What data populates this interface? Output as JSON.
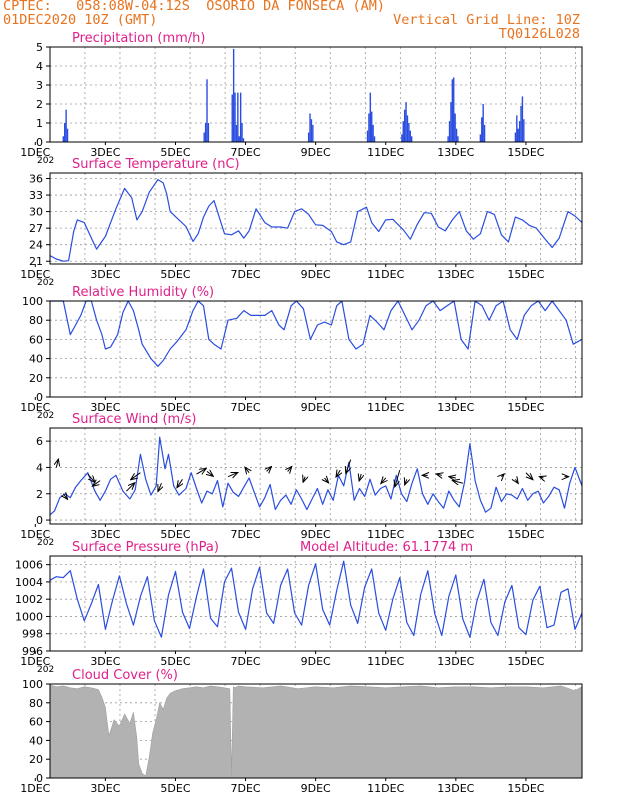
{
  "header": {
    "line1_left": "CPTEC:   058:08W-04:12S  OSORIO DA FONSECA (AM)",
    "line2_left": "01DEC2020 10Z (GMT)",
    "line2_right": "Vertical Grid Line: 10Z",
    "line3_right": "TQ0126L028"
  },
  "colors": {
    "header": "#e8731f",
    "title": "#e0208a",
    "series": "#2a4de0",
    "bars": "#2a4de0",
    "cloud": "#b2b2b2",
    "grid": "#9a9a9a"
  },
  "chart_data": [
    {
      "type": "bar",
      "title": "Precipitation (mm/h)",
      "x_tick_labels": [
        "1DEC",
        "3DEC",
        "5DEC",
        "7DEC",
        "9DEC",
        "11DEC",
        "13DEC",
        "15DEC"
      ],
      "x_cutoff_label": "202",
      "xlim_days": [
        1.42,
        16.6
      ],
      "ylim": [
        0,
        5
      ],
      "y_ticks": [
        0,
        1,
        2,
        3,
        4,
        5
      ],
      "x": [
        1.8,
        1.84,
        1.88,
        1.92,
        5.82,
        5.86,
        5.9,
        5.94,
        6.62,
        6.66,
        6.7,
        6.74,
        6.78,
        6.82,
        6.86,
        6.9,
        6.94,
        8.8,
        8.84,
        8.88,
        8.92,
        10.48,
        10.52,
        10.56,
        10.6,
        10.64,
        10.68,
        11.46,
        11.5,
        11.54,
        11.58,
        11.62,
        11.66,
        11.7,
        11.74,
        12.78,
        12.82,
        12.86,
        12.9,
        12.94,
        12.98,
        13.02,
        13.06,
        13.7,
        13.74,
        13.78,
        13.82,
        14.7,
        14.74,
        14.78,
        14.82,
        14.86,
        14.9,
        14.94
      ],
      "values": [
        0.3,
        1.0,
        1.7,
        0.7,
        0.5,
        1.0,
        3.3,
        1.0,
        2.5,
        4.9,
        2.6,
        0.9,
        2.6,
        0.3,
        2.6,
        1.0,
        0.2,
        0.5,
        1.5,
        1.2,
        0.9,
        0.6,
        1.5,
        2.6,
        1.6,
        0.9,
        0.3,
        0.4,
        1.1,
        1.7,
        2.1,
        1.4,
        1.0,
        0.6,
        0.3,
        0.3,
        1.1,
        2.1,
        3.3,
        3.4,
        1.5,
        0.7,
        0.3,
        0.4,
        1.3,
        2.0,
        0.9,
        0.5,
        1.4,
        0.7,
        1.1,
        1.9,
        2.4,
        1.2
      ]
    },
    {
      "type": "line",
      "title": "Surface Temperature (nC)",
      "x_tick_labels": [
        "1DEC",
        "3DEC",
        "5DEC",
        "7DEC",
        "9DEC",
        "11DEC",
        "13DEC",
        "15DEC"
      ],
      "x_cutoff_label": "202",
      "ylim": [
        20.5,
        37
      ],
      "y_ticks": [
        21,
        24,
        27,
        30,
        33,
        36
      ],
      "x": [
        1.42,
        1.6,
        1.8,
        1.95,
        2.1,
        2.2,
        2.4,
        2.6,
        2.75,
        3.0,
        3.3,
        3.55,
        3.75,
        3.9,
        4.05,
        4.25,
        4.5,
        4.65,
        4.75,
        4.85,
        5.1,
        5.3,
        5.5,
        5.65,
        5.8,
        5.95,
        6.1,
        6.4,
        6.6,
        6.8,
        6.95,
        7.1,
        7.3,
        7.55,
        7.75,
        8.0,
        8.2,
        8.4,
        8.6,
        8.8,
        9.0,
        9.2,
        9.45,
        9.6,
        9.8,
        10.0,
        10.2,
        10.45,
        10.6,
        10.8,
        11.0,
        11.2,
        11.5,
        11.7,
        11.9,
        12.1,
        12.3,
        12.5,
        12.7,
        12.9,
        13.1,
        13.3,
        13.5,
        13.7,
        13.9,
        14.1,
        14.3,
        14.5,
        14.7,
        14.9,
        15.1,
        15.3,
        15.55,
        15.75,
        15.95,
        16.2,
        16.4,
        16.6
      ],
      "values": [
        22.0,
        21.4,
        21.0,
        21.1,
        26.5,
        28.5,
        28.0,
        25.2,
        23.2,
        25.5,
        30.5,
        34.2,
        32.5,
        28.5,
        30.0,
        33.5,
        35.8,
        35.2,
        33.2,
        30.0,
        28.5,
        27.3,
        24.6,
        26.0,
        29.0,
        31.0,
        32.0,
        26.0,
        25.8,
        26.5,
        25.2,
        26.5,
        30.5,
        28.0,
        27.2,
        27.2,
        27.0,
        30.0,
        30.5,
        29.5,
        27.6,
        27.5,
        26.4,
        24.5,
        24.0,
        24.5,
        30.0,
        30.8,
        28.0,
        26.4,
        28.5,
        28.6,
        26.7,
        25.0,
        27.7,
        29.8,
        29.7,
        27.2,
        26.5,
        28.5,
        30.0,
        26.5,
        25.0,
        26.0,
        30.0,
        29.5,
        25.8,
        24.5,
        29.0,
        28.5,
        27.5,
        27.0,
        25.0,
        23.5,
        25.2,
        30.0,
        29.2,
        28.0
      ]
    },
    {
      "type": "line",
      "title": "Relative Humidity (%)",
      "x_tick_labels": [
        "1DEC",
        "3DEC",
        "5DEC",
        "7DEC",
        "9DEC",
        "11DEC",
        "13DEC",
        "15DEC"
      ],
      "x_cutoff_label": "202",
      "ylim": [
        0,
        100
      ],
      "y_ticks": [
        0,
        20,
        40,
        60,
        80,
        100
      ],
      "x": [
        1.42,
        1.6,
        1.8,
        2.0,
        2.15,
        2.3,
        2.45,
        2.6,
        2.75,
        2.9,
        3.0,
        3.15,
        3.35,
        3.5,
        3.65,
        3.8,
        3.95,
        4.05,
        4.3,
        4.5,
        4.65,
        4.85,
        5.05,
        5.3,
        5.5,
        5.65,
        5.8,
        5.95,
        6.1,
        6.3,
        6.5,
        6.75,
        6.95,
        7.15,
        7.35,
        7.55,
        7.75,
        7.95,
        8.1,
        8.3,
        8.45,
        8.65,
        8.85,
        9.05,
        9.25,
        9.45,
        9.6,
        9.75,
        9.95,
        10.15,
        10.35,
        10.55,
        10.75,
        10.95,
        11.15,
        11.35,
        11.55,
        11.75,
        11.95,
        12.15,
        12.35,
        12.55,
        12.75,
        12.95,
        13.15,
        13.35,
        13.55,
        13.75,
        13.95,
        14.15,
        14.35,
        14.55,
        14.75,
        14.95,
        15.15,
        15.35,
        15.55,
        15.75,
        15.95,
        16.15,
        16.35,
        16.6
      ],
      "values": [
        100,
        100,
        100,
        65,
        75,
        85,
        100,
        100,
        80,
        65,
        50,
        52,
        65,
        88,
        100,
        90,
        70,
        55,
        40,
        32,
        38,
        50,
        58,
        70,
        90,
        100,
        95,
        60,
        55,
        50,
        80,
        82,
        90,
        85,
        85,
        85,
        90,
        75,
        70,
        95,
        100,
        92,
        60,
        75,
        78,
        75,
        95,
        100,
        60,
        50,
        55,
        85,
        78,
        70,
        90,
        100,
        85,
        70,
        80,
        95,
        100,
        90,
        95,
        100,
        60,
        50,
        100,
        95,
        80,
        95,
        100,
        70,
        60,
        85,
        95,
        100,
        90,
        100,
        90,
        80,
        55,
        60
      ]
    },
    {
      "type": "line",
      "title": "Surface Wind (m/s)",
      "x_tick_labels": [
        "1DEC",
        "3DEC",
        "5DEC",
        "7DEC",
        "9DEC",
        "11DEC",
        "13DEC",
        "15DEC"
      ],
      "x_cutoff_label": "202",
      "ylim": [
        -0.3,
        7
      ],
      "y_ticks": [
        0,
        2,
        4,
        6
      ],
      "x": [
        1.42,
        1.55,
        1.7,
        1.85,
        2.0,
        2.15,
        2.3,
        2.5,
        2.7,
        2.85,
        3.0,
        3.15,
        3.3,
        3.5,
        3.7,
        3.85,
        4.0,
        4.15,
        4.3,
        4.45,
        4.55,
        4.7,
        4.8,
        4.95,
        5.1,
        5.3,
        5.45,
        5.6,
        5.75,
        5.9,
        6.05,
        6.2,
        6.35,
        6.5,
        6.65,
        6.8,
        6.95,
        7.1,
        7.25,
        7.4,
        7.55,
        7.7,
        7.85,
        8.0,
        8.15,
        8.3,
        8.45,
        8.6,
        8.75,
        8.9,
        9.05,
        9.2,
        9.35,
        9.5,
        9.65,
        9.8,
        9.95,
        10.1,
        10.25,
        10.4,
        10.55,
        10.7,
        10.85,
        11.0,
        11.15,
        11.3,
        11.45,
        11.6,
        11.75,
        11.9,
        12.05,
        12.2,
        12.35,
        12.5,
        12.65,
        12.8,
        12.95,
        13.1,
        13.25,
        13.4,
        13.55,
        13.7,
        13.85,
        14.0,
        14.15,
        14.3,
        14.45,
        14.6,
        14.75,
        14.9,
        15.05,
        15.2,
        15.35,
        15.5,
        15.65,
        15.8,
        15.95,
        16.1,
        16.25,
        16.4,
        16.6
      ],
      "values": [
        0.4,
        0.7,
        1.7,
        2.0,
        1.7,
        2.5,
        3.0,
        3.6,
        2.2,
        1.5,
        2.2,
        3.1,
        3.4,
        2.2,
        1.6,
        2.3,
        5.0,
        3.1,
        1.9,
        2.6,
        6.3,
        3.9,
        5.0,
        2.6,
        1.9,
        2.4,
        3.6,
        2.4,
        1.3,
        2.2,
        2.0,
        3.0,
        1.0,
        2.8,
        2.1,
        1.8,
        2.5,
        3.2,
        2.1,
        1.0,
        1.7,
        2.7,
        0.8,
        1.5,
        1.9,
        1.2,
        2.3,
        1.6,
        0.8,
        1.6,
        2.4,
        1.2,
        2.3,
        1.5,
        3.4,
        2.6,
        4.4,
        1.5,
        2.4,
        1.8,
        3.1,
        1.9,
        2.4,
        2.6,
        1.6,
        3.4,
        2.0,
        1.4,
        2.8,
        3.9,
        2.0,
        1.2,
        2.0,
        1.4,
        0.9,
        2.2,
        1.5,
        1.0,
        2.9,
        5.8,
        3.0,
        1.5,
        0.6,
        0.9,
        2.5,
        1.4,
        2.0,
        1.9,
        1.6,
        2.4,
        1.5,
        2.0,
        2.2,
        1.3,
        1.8,
        2.5,
        2.3,
        0.9,
        2.8,
        4.0,
        2.6
      ],
      "wind_vectors": [
        {
          "x": 1.6,
          "y": 4.0,
          "u": 0.15,
          "v": 0.6
        },
        {
          "x": 1.8,
          "y": 2.0,
          "u": 0.3,
          "v": -0.4
        },
        {
          "x": 2.5,
          "y": 3.5,
          "u": 0.5,
          "v": -0.6
        },
        {
          "x": 2.85,
          "y": 3.0,
          "u": -0.55,
          "v": -0.4
        },
        {
          "x": 3.6,
          "y": 2.2,
          "u": 0.6,
          "v": 0.6
        },
        {
          "x": 4.0,
          "y": 3.6,
          "u": -0.7,
          "v": -0.5
        },
        {
          "x": 4.6,
          "y": 2.8,
          "u": -0.25,
          "v": -0.6
        },
        {
          "x": 5.2,
          "y": 3.1,
          "u": -0.4,
          "v": -0.6
        },
        {
          "x": 5.6,
          "y": 3.5,
          "u": 0.7,
          "v": 0.4
        },
        {
          "x": 5.9,
          "y": 3.7,
          "u": 0.45,
          "v": -0.35
        },
        {
          "x": 6.5,
          "y": 3.3,
          "u": 0.7,
          "v": 0.3
        },
        {
          "x": 7.1,
          "y": 3.6,
          "u": -0.3,
          "v": 0.4
        },
        {
          "x": 7.6,
          "y": 3.7,
          "u": 0.35,
          "v": 0.35
        },
        {
          "x": 8.2,
          "y": 3.7,
          "u": 0.3,
          "v": 0.35
        },
        {
          "x": 8.7,
          "y": 3.3,
          "u": -0.15,
          "v": -0.4
        },
        {
          "x": 9.25,
          "y": 3.2,
          "u": 0.3,
          "v": -0.35
        },
        {
          "x": 9.7,
          "y": 3.8,
          "u": -0.3,
          "v": -0.5
        },
        {
          "x": 10.0,
          "y": 4.6,
          "u": -0.35,
          "v": -1.0
        },
        {
          "x": 10.3,
          "y": 3.5,
          "u": -0.15,
          "v": -0.5
        },
        {
          "x": 11.0,
          "y": 3.2,
          "u": -0.35,
          "v": -0.4
        },
        {
          "x": 11.4,
          "y": 3.8,
          "u": -0.35,
          "v": -1.2
        },
        {
          "x": 11.6,
          "y": 3.1,
          "u": -0.15,
          "v": -0.4
        },
        {
          "x": 12.2,
          "y": 3.4,
          "u": -0.4,
          "v": 0.0
        },
        {
          "x": 12.6,
          "y": 3.4,
          "u": -0.4,
          "v": 0.1
        },
        {
          "x": 13.0,
          "y": 3.2,
          "u": -0.5,
          "v": 0.1
        },
        {
          "x": 13.2,
          "y": 2.8,
          "u": -0.75,
          "v": 0.2
        },
        {
          "x": 14.3,
          "y": 3.3,
          "u": 0.2,
          "v": 0.2
        },
        {
          "x": 14.7,
          "y": 3.1,
          "u": 0.2,
          "v": -0.3
        },
        {
          "x": 15.0,
          "y": 3.6,
          "u": 0.5,
          "v": -0.5
        },
        {
          "x": 15.5,
          "y": 3.2,
          "u": -0.3,
          "v": 0.1
        },
        {
          "x": 16.1,
          "y": 3.3,
          "u": 0.3,
          "v": 0.0
        }
      ]
    },
    {
      "type": "line",
      "title": "Surface Pressure (hPa)",
      "annotation": "Model Altitude: 61.1774 m",
      "x_tick_labels": [
        "1DEC",
        "3DEC",
        "5DEC",
        "7DEC",
        "9DEC",
        "11DEC",
        "13DEC",
        "15DEC"
      ],
      "x_cutoff_label": "202",
      "ylim": [
        996,
        1007
      ],
      "y_ticks": [
        996,
        998,
        1000,
        1002,
        1004,
        1006
      ],
      "x": [
        1.42,
        1.6,
        1.8,
        2.0,
        2.2,
        2.4,
        2.6,
        2.8,
        3.0,
        3.2,
        3.4,
        3.6,
        3.8,
        4.0,
        4.2,
        4.4,
        4.6,
        4.8,
        5.0,
        5.2,
        5.4,
        5.6,
        5.8,
        6.0,
        6.2,
        6.4,
        6.6,
        6.8,
        7.0,
        7.2,
        7.4,
        7.6,
        7.8,
        8.0,
        8.2,
        8.4,
        8.6,
        8.8,
        9.0,
        9.2,
        9.4,
        9.6,
        9.8,
        10.0,
        10.2,
        10.4,
        10.6,
        10.8,
        11.0,
        11.2,
        11.4,
        11.6,
        11.8,
        12.0,
        12.2,
        12.4,
        12.6,
        12.8,
        13.0,
        13.2,
        13.4,
        13.6,
        13.8,
        14.0,
        14.2,
        14.4,
        14.6,
        14.8,
        15.0,
        15.2,
        15.4,
        15.6,
        15.8,
        16.0,
        16.2,
        16.4,
        16.6
      ],
      "values": [
        1004.2,
        1004.6,
        1004.5,
        1005.3,
        1002.0,
        999.5,
        1001.5,
        1003.7,
        998.5,
        1001.8,
        1004.7,
        1001.5,
        999.0,
        1002.3,
        1004.6,
        999.5,
        997.6,
        1002.5,
        1005.2,
        1000.5,
        998.6,
        1002.3,
        1005.5,
        999.8,
        998.8,
        1004.0,
        1005.6,
        1000.5,
        998.5,
        1003.2,
        1005.7,
        1000.4,
        999.2,
        1003.6,
        1005.5,
        1000.4,
        999.0,
        1003.6,
        1006.1,
        1000.8,
        999.0,
        1003.0,
        1006.4,
        1001.3,
        999.2,
        1003.4,
        1005.5,
        1000.4,
        998.4,
        1002.0,
        1004.5,
        999.3,
        997.8,
        1002.6,
        1005.3,
        1000.3,
        997.8,
        1002.3,
        1004.8,
        999.7,
        997.6,
        1001.8,
        1004.3,
        999.3,
        997.8,
        1001.7,
        1003.6,
        998.7,
        997.9,
        1001.9,
        1003.5,
        998.7,
        999.0,
        1002.8,
        1003.2,
        998.5,
        1000.4
      ]
    },
    {
      "type": "area",
      "title": "Cloud Cover (%)",
      "x_tick_labels": [
        "1DEC",
        "3DEC",
        "5DEC",
        "7DEC",
        "9DEC",
        "11DEC",
        "13DEC",
        "15DEC"
      ],
      "ylim": [
        0,
        100
      ],
      "y_ticks": [
        0,
        20,
        40,
        60,
        80,
        100
      ],
      "x": [
        1.42,
        1.6,
        1.8,
        2.0,
        2.2,
        2.4,
        2.6,
        2.8,
        2.9,
        3.0,
        3.1,
        3.25,
        3.4,
        3.55,
        3.7,
        3.8,
        3.9,
        3.95,
        4.05,
        4.15,
        4.25,
        4.35,
        4.45,
        4.55,
        4.65,
        4.75,
        4.85,
        5.0,
        5.2,
        5.4,
        5.6,
        5.8,
        6.0,
        6.2,
        6.4,
        6.55,
        6.6,
        6.65,
        6.7,
        6.8,
        7.0,
        7.5,
        8.0,
        8.5,
        9.0,
        9.5,
        10.0,
        10.5,
        11.0,
        11.5,
        12.0,
        12.5,
        13.0,
        13.5,
        14.0,
        14.5,
        15.0,
        15.5,
        16.0,
        16.4,
        16.6
      ],
      "values": [
        99,
        97,
        98,
        96,
        95,
        97,
        96,
        94,
        86,
        75,
        45,
        62,
        55,
        68,
        58,
        70,
        42,
        15,
        5,
        2,
        22,
        48,
        62,
        80,
        73,
        85,
        90,
        93,
        95,
        96,
        97,
        96,
        98,
        97,
        96,
        95,
        3,
        97,
        96,
        98,
        97,
        96,
        98,
        95,
        97,
        96,
        98,
        97,
        96,
        97,
        98,
        96,
        97,
        97,
        96,
        97,
        97,
        96,
        98,
        93,
        97
      ]
    }
  ]
}
